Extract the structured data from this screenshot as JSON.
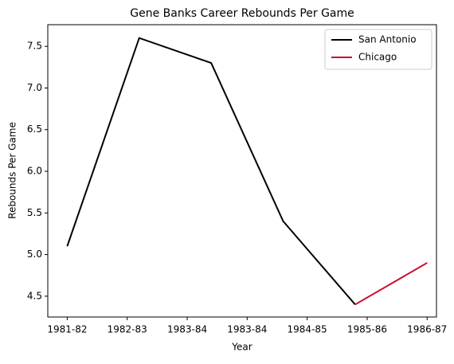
{
  "chart_data": {
    "type": "line",
    "title": "Gene Banks Career Rebounds Per Game",
    "x_label": "Year",
    "y_label": "Rebounds Per Game",
    "series": [
      {
        "name": "San Antonio",
        "color": "#000000",
        "x": [
          0,
          1,
          2,
          3,
          4
        ],
        "values": [
          5.1,
          7.6,
          7.3,
          5.4,
          4.4
        ]
      },
      {
        "name": "Chicago",
        "color": "#c8102e",
        "x": [
          4,
          5
        ],
        "values": [
          4.4,
          4.9
        ]
      }
    ],
    "xlim": [
      -0.27,
      5.13
    ],
    "xticks": [
      {
        "value": 0,
        "label": "1981-82"
      },
      {
        "value": 0.833,
        "label": "1982-83"
      },
      {
        "value": 1.667,
        "label": "1983-84"
      },
      {
        "value": 2.5,
        "label": "1983-84"
      },
      {
        "value": 3.333,
        "label": "1984-85"
      },
      {
        "value": 4.167,
        "label": "1985-86"
      },
      {
        "value": 5,
        "label": "1986-87"
      }
    ],
    "ylim": [
      4.25,
      7.76
    ],
    "yticks": [
      {
        "value": 4.5,
        "label": "4.5"
      },
      {
        "value": 5,
        "label": "5.0"
      },
      {
        "value": 5.5,
        "label": "5.5"
      },
      {
        "value": 6,
        "label": "6.0"
      },
      {
        "value": 6.5,
        "label": "6.5"
      },
      {
        "value": 7,
        "label": "7.0"
      },
      {
        "value": 7.5,
        "label": "7.5"
      }
    ],
    "legend": "upper right"
  }
}
